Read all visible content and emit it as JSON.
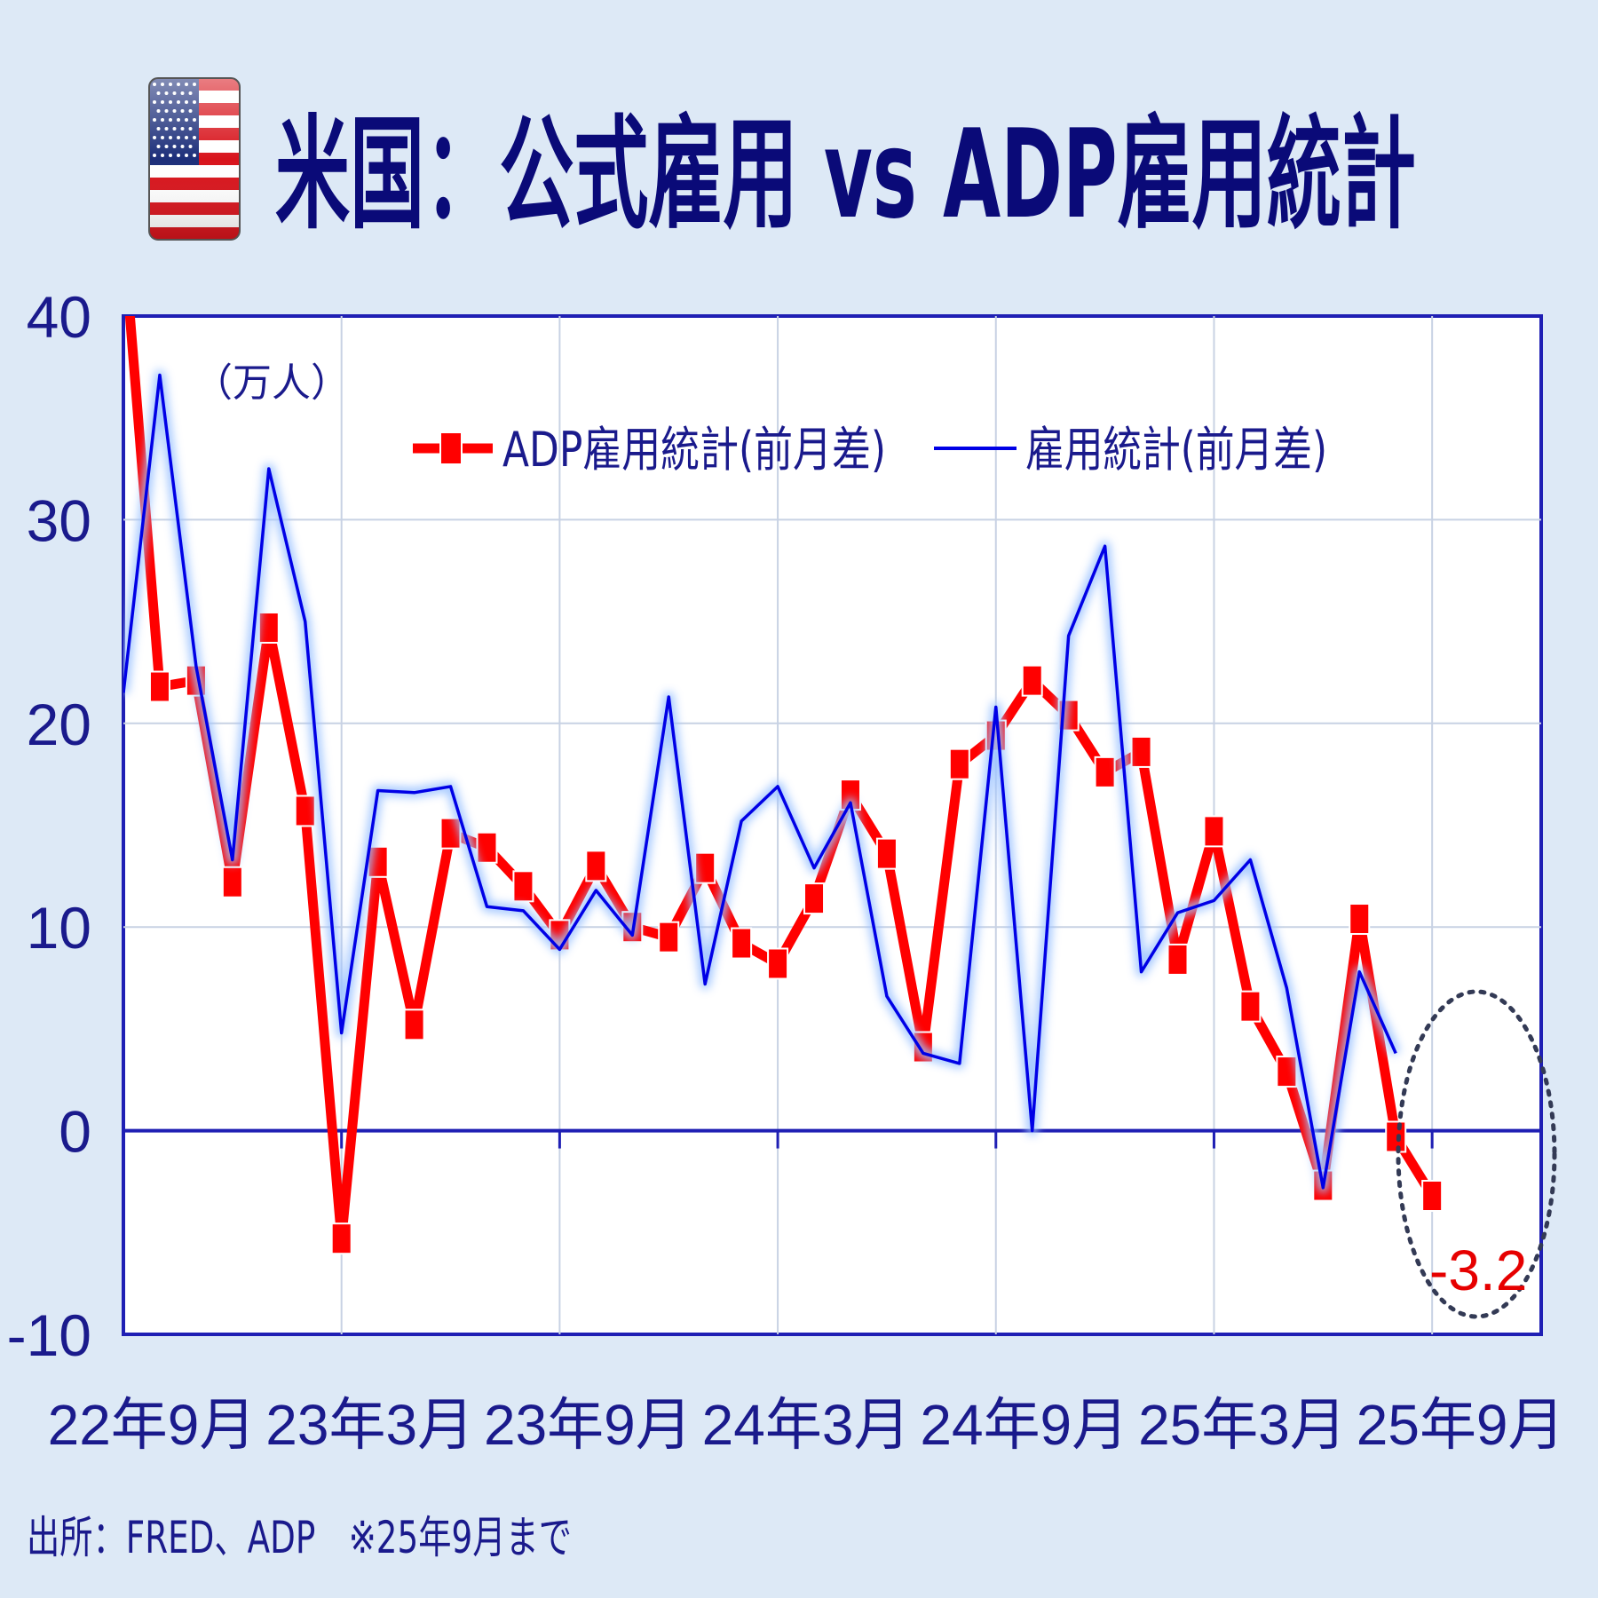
{
  "title": "米国：公式雇用 vs ADP雇用統計",
  "source": "出所：FRED、ADP　※25年9月まで",
  "chart_data": {
    "type": "line",
    "unit": "（万人）",
    "ylim": [
      -10,
      40
    ],
    "yticks": [
      -10,
      0,
      10,
      20,
      30,
      40
    ],
    "x_range": [
      0,
      39
    ],
    "x_tick_labels": [
      {
        "x": 0,
        "label": "22年9月"
      },
      {
        "x": 6,
        "label": "23年3月"
      },
      {
        "x": 12,
        "label": "23年9月"
      },
      {
        "x": 18,
        "label": "24年3月"
      },
      {
        "x": 24,
        "label": "24年9月"
      },
      {
        "x": 30,
        "label": "25年3月"
      },
      {
        "x": 36,
        "label": "25年9月"
      }
    ],
    "grid": true,
    "legend_position": "top-center",
    "series": [
      {
        "name": "ADP雇用統計(前月差)",
        "color": "#ff0000",
        "style": "thick-red-with-square-markers",
        "x": [
          0,
          1,
          2,
          3,
          4,
          5,
          6,
          7,
          8,
          9,
          10,
          11,
          12,
          13,
          14,
          15,
          16,
          17,
          18,
          19,
          20,
          21,
          22,
          23,
          24,
          25,
          26,
          27,
          28,
          29,
          30,
          31,
          32,
          33,
          34,
          35,
          36
        ],
        "values": [
          44,
          21.8,
          22.1,
          12.2,
          24.7,
          15.7,
          -5.3,
          13.2,
          5.2,
          14.6,
          13.9,
          12.0,
          9.6,
          13.0,
          10.0,
          9.5,
          12.9,
          9.2,
          8.2,
          11.4,
          16.5,
          13.6,
          4.1,
          18.0,
          19.4,
          22.1,
          20.4,
          17.6,
          18.6,
          8.4,
          14.7,
          6.1,
          2.9,
          -2.7,
          10.4,
          -0.3,
          -3.2
        ]
      },
      {
        "name": "雇用統計(前月差)",
        "color": "#0000e6",
        "style": "thin-blue-with-glow",
        "x": [
          0,
          1,
          2,
          3,
          4,
          5,
          6,
          7,
          8,
          9,
          10,
          11,
          12,
          13,
          14,
          15,
          16,
          17,
          18,
          19,
          20,
          21,
          22,
          23,
          24,
          25,
          26,
          27,
          28,
          29,
          30,
          31,
          32,
          33,
          34,
          35
        ],
        "values": [
          21.5,
          37.1,
          22.8,
          13.3,
          32.5,
          25.0,
          4.8,
          16.7,
          16.6,
          16.9,
          11.0,
          10.8,
          8.9,
          11.8,
          9.6,
          21.3,
          7.2,
          15.2,
          16.9,
          12.9,
          16.1,
          6.6,
          3.8,
          3.3,
          20.8,
          0.0,
          24.3,
          28.7,
          7.8,
          10.7,
          11.3,
          13.3,
          7.0,
          -2.8,
          7.8,
          3.8
        ]
      }
    ],
    "annotation": {
      "x": 36,
      "y": -3.2,
      "label": "-3.2"
    }
  }
}
